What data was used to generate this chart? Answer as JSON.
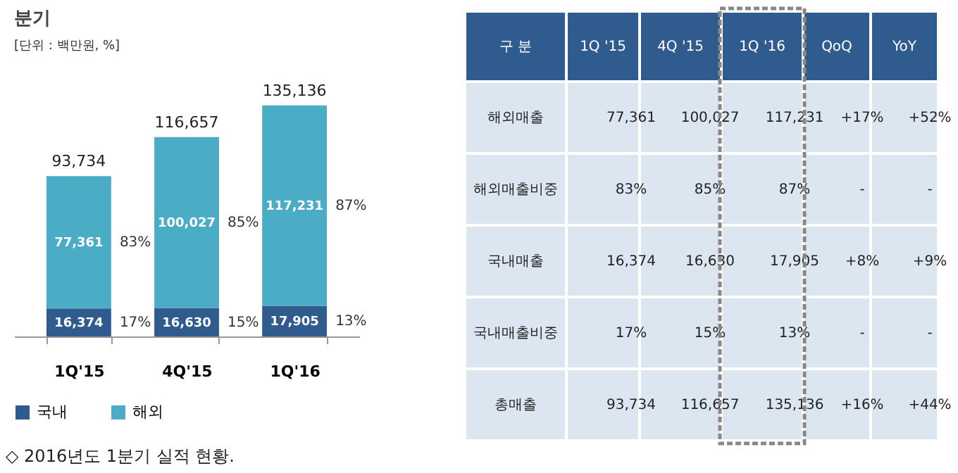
{
  "chart_data": [
    {
      "type": "bar",
      "title": "분기",
      "subtitle": "[단위 : 백만원, %]",
      "categories": [
        "1Q'15",
        "4Q'15",
        "1Q'16"
      ],
      "stacked": true,
      "legend": "bottom",
      "series": [
        {
          "name": "국내",
          "color": "#2f5b8e",
          "values": [
            16374,
            16630,
            17905
          ],
          "value_labels": [
            "16,374",
            "16,630",
            "17,905"
          ]
        },
        {
          "name": "해외",
          "color": "#4bacc6",
          "values": [
            77361,
            100027,
            117231
          ],
          "value_labels": [
            "77,361",
            "100,027",
            "117,231"
          ]
        }
      ],
      "totals": [
        "93,734",
        "116,657",
        "135,136"
      ],
      "annotations": [
        "17%",
        "83%",
        "15%",
        "85%",
        "13%",
        "87%",
        "◇ 2016년도 1분기 실적 현황."
      ]
    },
    {
      "type": "other",
      "annotations": [
        "구 분",
        "1Q '15",
        "4Q '15",
        "1Q '16",
        "QoQ",
        "YoY",
        "해외매출",
        "77,361",
        "100,027",
        "117,231",
        "+17%",
        "+52%",
        "해외매출비중",
        "83%",
        "85%",
        "87%",
        "-",
        "-",
        "국내매출",
        "16,374",
        "16,630",
        "17,905",
        "+8%",
        "+9%",
        "국내매출비중",
        "17%",
        "15%",
        "13%",
        "-",
        "-",
        "총매출",
        "93,734",
        "116,657",
        "135,136",
        "+16%",
        "+44%"
      ]
    }
  ]
}
